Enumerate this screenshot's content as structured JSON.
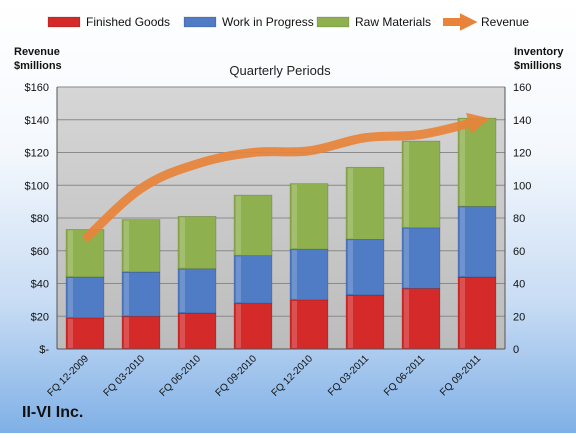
{
  "company": "II-VI Inc.",
  "chart_data": {
    "type": "bar",
    "stacked": true,
    "title": "Quarterly Periods",
    "ylabel_left": "Revenue $millions",
    "ylabel_right": "Inventory $millions",
    "ylim": [
      0,
      160
    ],
    "yticks": [
      0,
      20,
      40,
      60,
      80,
      100,
      120,
      140,
      160
    ],
    "yticks_left": [
      "$-",
      "$20",
      "$40",
      "$60",
      "$80",
      "$100",
      "$120",
      "$140",
      "$160"
    ],
    "yticks_right": [
      "0",
      "20",
      "40",
      "60",
      "80",
      "100",
      "120",
      "140",
      "160"
    ],
    "categories": [
      "FQ 12-2009",
      "FQ 03-2010",
      "FQ 06-2010",
      "FQ 09-2010",
      "FQ 12-2010",
      "FQ 03-2011",
      "FQ 06-2011",
      "FQ 09-2011"
    ],
    "series": [
      {
        "name": "Finished Goods",
        "kind": "bar",
        "color": "#d42a2a",
        "values": [
          19,
          20,
          22,
          28,
          30,
          33,
          37,
          44
        ]
      },
      {
        "name": "Work in Progress",
        "kind": "bar",
        "color": "#4f7cc4",
        "values": [
          25,
          27,
          27,
          29,
          31,
          34,
          37,
          43
        ]
      },
      {
        "name": "Raw Materials",
        "kind": "bar",
        "color": "#8eb04f",
        "values": [
          29,
          32,
          32,
          37,
          40,
          44,
          53,
          54
        ]
      },
      {
        "name": "Revenue",
        "kind": "line",
        "color": "#e8843a",
        "values": [
          67,
          98,
          113,
          120,
          121,
          129,
          131,
          139
        ]
      }
    ],
    "grid": true,
    "legend_position": "top"
  }
}
